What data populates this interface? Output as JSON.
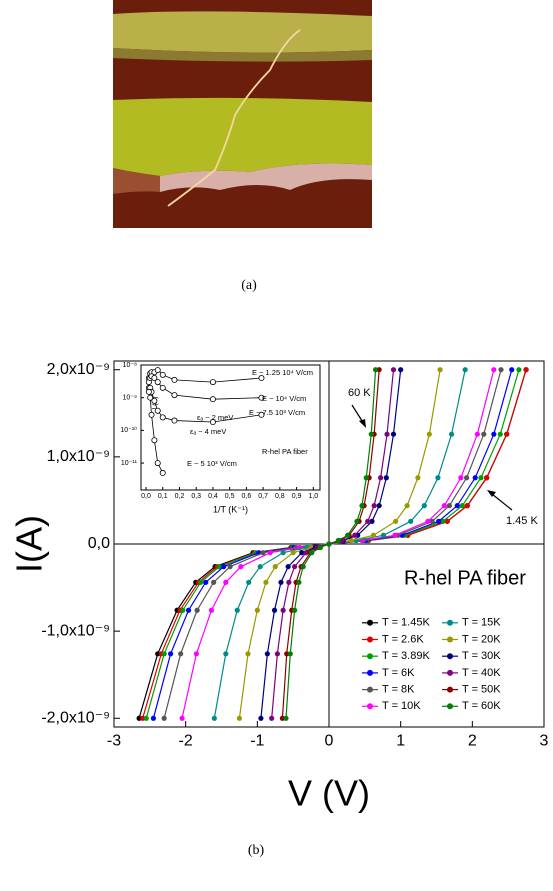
{
  "figure": {
    "captions": [
      "(a)",
      "(b)"
    ]
  },
  "chart_data": [
    {
      "type": "line",
      "xlabel": "V (V)",
      "ylabel": "I(A)",
      "xlim": [
        -3,
        3
      ],
      "ylim": [
        -2.1e-09,
        2.1e-09
      ],
      "xticks": [
        -3,
        -2,
        -1,
        0,
        1,
        2,
        3
      ],
      "yticks": [
        {
          "value": -2e-09,
          "label": "-2,0x10⁻⁹"
        },
        {
          "value": -1e-09,
          "label": "-1,0x10⁻⁹"
        },
        {
          "value": 0,
          "label": "0,0"
        },
        {
          "value": 1e-09,
          "label": "1,0x10⁻⁹"
        },
        {
          "value": 2e-09,
          "label": "2,0x10⁻⁹"
        }
      ],
      "legend": "lower right",
      "annotations": [
        "60 K",
        "1.45 K",
        "R-hel PA fiber"
      ],
      "series": [
        {
          "name": "T = 1.45K",
          "color": "#000000",
          "x": [
            -2.65,
            -2.39,
            -2.12,
            -1.86,
            -1.59,
            -1.06,
            -0.53,
            0,
            0.55,
            1.1,
            1.65,
            1.93,
            2.2,
            2.48,
            2.75
          ],
          "values": [
            -2e-09,
            -1.26e-09,
            -7.6e-10,
            -4.4e-10,
            -2.6e-10,
            -1e-10,
            -4e-11,
            0,
            4e-11,
            1e-10,
            2.6e-10,
            4.4e-10,
            7.6e-10,
            1.26e-09,
            2e-09
          ]
        },
        {
          "name": "T = 2.6K",
          "color": "#e00000",
          "x": [
            -2.6,
            -2.34,
            -2.08,
            -1.82,
            -1.56,
            -1.04,
            -0.52,
            0,
            0.55,
            1.1,
            1.65,
            1.93,
            2.2,
            2.48,
            2.75
          ],
          "values": [
            -2e-09,
            -1.26e-09,
            -7.6e-10,
            -4.4e-10,
            -2.6e-10,
            -1e-10,
            -4e-11,
            0,
            4e-11,
            1e-10,
            2.6e-10,
            4.4e-10,
            7.6e-10,
            1.26e-09,
            2e-09
          ]
        },
        {
          "name": "T = 3.89K",
          "color": "#00a000",
          "x": [
            -2.55,
            -2.3,
            -2.04,
            -1.79,
            -1.53,
            -1.02,
            -0.51,
            0,
            0.53,
            1.06,
            1.59,
            1.86,
            2.12,
            2.39,
            2.65
          ],
          "values": [
            -2e-09,
            -1.26e-09,
            -7.6e-10,
            -4.4e-10,
            -2.6e-10,
            -1e-10,
            -4e-11,
            0,
            4e-11,
            1e-10,
            2.6e-10,
            4.4e-10,
            7.6e-10,
            1.26e-09,
            2e-09
          ]
        },
        {
          "name": "T = 6K",
          "color": "#0000ff",
          "x": [
            -2.45,
            -2.21,
            -1.96,
            -1.72,
            -1.47,
            -0.98,
            -0.49,
            0,
            0.51,
            1.02,
            1.53,
            1.79,
            2.04,
            2.3,
            2.55
          ],
          "values": [
            -2e-09,
            -1.26e-09,
            -7.6e-10,
            -4.4e-10,
            -2.6e-10,
            -1e-10,
            -4e-11,
            0,
            4e-11,
            1e-10,
            2.6e-10,
            4.4e-10,
            7.6e-10,
            1.26e-09,
            2e-09
          ]
        },
        {
          "name": "T = 8K",
          "color": "#555555",
          "x": [
            -2.3,
            -2.07,
            -1.84,
            -1.61,
            -1.38,
            -0.92,
            -0.46,
            0,
            0.48,
            0.96,
            1.44,
            1.68,
            1.92,
            2.16,
            2.4
          ],
          "values": [
            -2e-09,
            -1.26e-09,
            -7.6e-10,
            -4.4e-10,
            -2.6e-10,
            -1e-10,
            -4e-11,
            0,
            4e-11,
            1e-10,
            2.6e-10,
            4.4e-10,
            7.6e-10,
            1.26e-09,
            2e-09
          ]
        },
        {
          "name": "T = 10K",
          "color": "#ff00ff",
          "x": [
            -2.05,
            -1.85,
            -1.64,
            -1.44,
            -1.23,
            -0.82,
            -0.41,
            0,
            0.46,
            0.92,
            1.38,
            1.61,
            1.84,
            2.07,
            2.3
          ],
          "values": [
            -2e-09,
            -1.26e-09,
            -7.6e-10,
            -4.4e-10,
            -2.6e-10,
            -1e-10,
            -4e-11,
            0,
            4e-11,
            1e-10,
            2.6e-10,
            4.4e-10,
            7.6e-10,
            1.26e-09,
            2e-09
          ]
        },
        {
          "name": "T = 15K",
          "color": "#008b8b",
          "x": [
            -1.6,
            -1.44,
            -1.28,
            -1.12,
            -0.96,
            -0.64,
            -0.32,
            0,
            0.38,
            0.76,
            1.14,
            1.33,
            1.52,
            1.71,
            1.9
          ],
          "values": [
            -2e-09,
            -1.26e-09,
            -7.6e-10,
            -4.4e-10,
            -2.6e-10,
            -1e-10,
            -4e-11,
            0,
            4e-11,
            1e-10,
            2.6e-10,
            4.4e-10,
            7.6e-10,
            1.26e-09,
            2e-09
          ]
        },
        {
          "name": "T = 20K",
          "color": "#999900",
          "x": [
            -1.25,
            -1.13,
            -1,
            -0.88,
            -0.75,
            -0.5,
            -0.25,
            0,
            0.31,
            0.62,
            0.93,
            1.09,
            1.24,
            1.4,
            1.55
          ],
          "values": [
            -2e-09,
            -1.26e-09,
            -7.6e-10,
            -4.4e-10,
            -2.6e-10,
            -1e-10,
            -4e-11,
            0,
            4e-11,
            1e-10,
            2.6e-10,
            4.4e-10,
            7.6e-10,
            1.26e-09,
            2e-09
          ]
        },
        {
          "name": "T = 30K",
          "color": "#000080",
          "x": [
            -0.95,
            -0.86,
            -0.76,
            -0.67,
            -0.57,
            -0.38,
            -0.19,
            0,
            0.2,
            0.4,
            0.6,
            0.7,
            0.8,
            0.9,
            1
          ],
          "values": [
            -2e-09,
            -1.26e-09,
            -7.6e-10,
            -4.4e-10,
            -2.6e-10,
            -1e-10,
            -4e-11,
            0,
            4e-11,
            1e-10,
            2.6e-10,
            4.4e-10,
            7.6e-10,
            1.26e-09,
            2e-09
          ]
        },
        {
          "name": "T = 40K",
          "color": "#800080",
          "x": [
            -0.8,
            -0.72,
            -0.64,
            -0.56,
            -0.48,
            -0.32,
            -0.16,
            0,
            0.18,
            0.36,
            0.54,
            0.63,
            0.72,
            0.81,
            0.9
          ],
          "values": [
            -2e-09,
            -1.26e-09,
            -7.6e-10,
            -4.4e-10,
            -2.6e-10,
            -1e-10,
            -4e-11,
            0,
            4e-11,
            1e-10,
            2.6e-10,
            4.4e-10,
            7.6e-10,
            1.26e-09,
            2e-09
          ]
        },
        {
          "name": "T = 50K",
          "color": "#8b0000",
          "x": [
            -0.65,
            -0.59,
            -0.52,
            -0.46,
            -0.39,
            -0.26,
            -0.13,
            0,
            0.14,
            0.28,
            0.42,
            0.49,
            0.56,
            0.63,
            0.7
          ],
          "values": [
            -2e-09,
            -1.26e-09,
            -7.6e-10,
            -4.4e-10,
            -2.6e-10,
            -1e-10,
            -4e-11,
            0,
            4e-11,
            1e-10,
            2.6e-10,
            4.4e-10,
            7.6e-10,
            1.26e-09,
            2e-09
          ]
        },
        {
          "name": "T = 60K",
          "color": "#008000",
          "x": [
            -0.6,
            -0.54,
            -0.48,
            -0.42,
            -0.36,
            -0.24,
            -0.12,
            0,
            0.13,
            0.26,
            0.39,
            0.46,
            0.52,
            0.59,
            0.65
          ],
          "values": [
            -2e-09,
            -1.26e-09,
            -7.6e-10,
            -4.4e-10,
            -2.6e-10,
            -1e-10,
            -4e-11,
            0,
            4e-11,
            1e-10,
            2.6e-10,
            4.4e-10,
            7.6e-10,
            1.26e-09,
            2e-09
          ]
        }
      ]
    },
    {
      "type": "line",
      "xlabel": "1/T (K⁻¹)",
      "ylabel": "I (A)",
      "log_y": true,
      "xlim": [
        -0.03,
        1.04
      ],
      "ylim": [
        1.5e-12,
        1e-08
      ],
      "xticks": [
        {
          "value": 0,
          "label": "0,0"
        },
        {
          "value": 0.1,
          "label": "0,1"
        },
        {
          "value": 0.2,
          "label": "0,2"
        },
        {
          "value": 0.3,
          "label": "0,3"
        },
        {
          "value": 0.4,
          "label": "0,4"
        },
        {
          "value": 0.5,
          "label": "0,5"
        },
        {
          "value": 0.6,
          "label": "0,6"
        },
        {
          "value": 0.7,
          "label": "0,7"
        },
        {
          "value": 0.8,
          "label": "0,8"
        },
        {
          "value": 0.9,
          "label": "0,9"
        },
        {
          "value": 1,
          "label": "1,0"
        }
      ],
      "yticks": [
        {
          "value": 1e-11,
          "label": "10⁻¹¹"
        },
        {
          "value": 1e-10,
          "label": "10⁻¹⁰"
        },
        {
          "value": 1e-09,
          "label": "10⁻⁹"
        },
        {
          "value": 1e-08,
          "label": "10⁻⁸"
        }
      ],
      "annotations": [
        "E ~ 1.25 10⁴ V/cm",
        "E ~ 10⁴ V/cm",
        "εₐ ~ 2 meV",
        "E ~ 7.5 10³ V/cm",
        "εₐ ~ 4 meV",
        "R-hel PA fiber",
        "E ~ 5 10³ V/cm"
      ],
      "series": [
        {
          "color": "#000000",
          "x": [
            0.017,
            0.025,
            0.033,
            0.05,
            0.07,
            0.1,
            0.17,
            0.4,
            0.69
          ],
          "values": [
            4e-09,
            5.5e-09,
            6e-09,
            6e-09,
            7e-09,
            5e-09,
            3.5e-09,
            3e-09,
            4e-09
          ]
        },
        {
          "color": "#000000",
          "x": [
            0.017,
            0.025,
            0.033,
            0.05,
            0.07,
            0.1,
            0.17,
            0.4,
            0.69
          ],
          "values": [
            3e-09,
            4e-09,
            4.5e-09,
            4e-09,
            3e-09,
            2e-09,
            1.2e-09,
            9e-10,
            1e-09
          ]
        },
        {
          "color": "#000000",
          "x": [
            0.017,
            0.025,
            0.033,
            0.05,
            0.07,
            0.1,
            0.17,
            0.4,
            0.69
          ],
          "values": [
            2e-09,
            2e-09,
            1.5e-09,
            8e-10,
            4e-10,
            2.5e-10,
            2e-10,
            1.8e-10,
            3e-10
          ]
        },
        {
          "color": "#000000",
          "x": [
            0.017,
            0.025,
            0.033,
            0.05,
            0.07,
            0.1
          ],
          "values": [
            1.5e-09,
            1e-09,
            3e-10,
            5e-11,
            1e-11,
            5e-12
          ]
        }
      ]
    }
  ]
}
